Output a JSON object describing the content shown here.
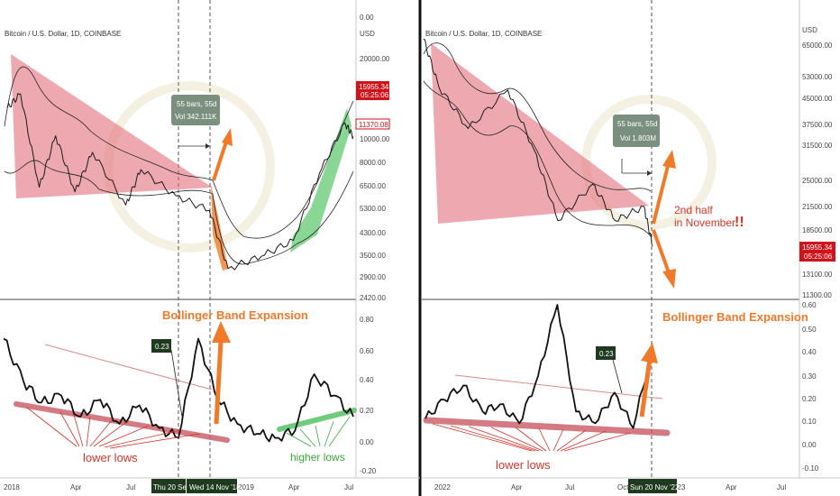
{
  "panels": [
    {
      "id": "left",
      "source": "Bitcoin / U.S. Dollar, 1D, COINBASE",
      "price_axis": {
        "ticks": [
          "0.00",
          "USD",
          "20000.00",
          "13000.00",
          "10000.00",
          "8000.00",
          "6500.00",
          "5300.00",
          "4300.00",
          "3500.00",
          "2900.00",
          "2420.00"
        ],
        "current_price_badge": {
          "price": "15955.34",
          "countdown": "05:25:06"
        },
        "marker_badge": "11370.08"
      },
      "indicator_axis": {
        "ticks": [
          "0.80",
          "0.60",
          "0.40",
          "0.20",
          "0.00",
          "-0.20"
        ]
      },
      "time_axis": {
        "ticks": [
          "2018",
          "Apr",
          "Jul",
          "2019",
          "Apr",
          "Jul"
        ],
        "highlight_labels": [
          "Thu 20 Sep '18",
          "Wed 14 Nov '18"
        ]
      },
      "measure_box": {
        "line1": "55 bars, 55d",
        "line2": "Vol 342.111K"
      },
      "indicator_value": "0.23",
      "annotations": {
        "bbe_title": "Bollinger Band Expansion",
        "lower_lows": "lower lows",
        "higher_lows": "higher lows"
      }
    },
    {
      "id": "right",
      "source": "Bitcoin / U.S. Dollar, 1D, COINBASE",
      "price_axis": {
        "ticks": [
          "USD",
          "65000.00",
          "53000.00",
          "45000.00",
          "37500.00",
          "31500.00",
          "25000.00",
          "21500.00",
          "18500.00",
          "15955.34",
          "13100.00",
          "11300.00"
        ],
        "current_price_badge": {
          "price": "15955.34",
          "countdown": "05:25:06"
        }
      },
      "indicator_axis": {
        "ticks": [
          "0.60",
          "0.50",
          "0.40",
          "0.30",
          "0.20",
          "0.10",
          "0.00",
          "-0.10"
        ]
      },
      "time_axis": {
        "ticks": [
          "2022",
          "Apr",
          "Jul",
          "Oct",
          "'23",
          "Apr",
          "Jul"
        ],
        "highlight_labels": [
          "Sun 20 Nov '22"
        ]
      },
      "measure_box": {
        "line1": "55 bars, 55d",
        "line2": "Vol 1.803M"
      },
      "indicator_value": "0.23",
      "annotations": {
        "bbe_title": "Bollinger Band Expansion",
        "second_half": "2nd half",
        "in_november": "in November",
        "exclamation": "!!",
        "lower_lows": "lower lows"
      }
    }
  ],
  "chart_data": [
    {
      "type": "line",
      "title": "",
      "panel": "left-price",
      "y_scale": "log",
      "ylim": [
        2420,
        30000
      ],
      "x": [
        "2017-12-15",
        "2018-01-06",
        "2018-02-06",
        "2018-03-05",
        "2018-04-06",
        "2018-05-05",
        "2018-06-29",
        "2018-07-24",
        "2018-09-20",
        "2018-11-14",
        "2018-12-15",
        "2019-02-08",
        "2019-04-02",
        "2019-05-15",
        "2019-06-26",
        "2019-07-10"
      ],
      "series": [
        {
          "values": [
            15000,
            17200,
            7000,
            11500,
            6700,
            9800,
            5900,
            8300,
            6450,
            5600,
            3200,
            3600,
            4200,
            8000,
            13000,
            11400
          ]
        }
      ]
    },
    {
      "type": "line",
      "title": "",
      "panel": "left-indicator",
      "ylim": [
        -0.2,
        0.9
      ],
      "x": [
        "2018-01",
        "2018-02",
        "2018-03",
        "2018-04",
        "2018-05",
        "2018-06",
        "2018-07",
        "2018-08",
        "2018-09",
        "2018-10",
        "2018-11",
        "2018-12",
        "2019-01",
        "2019-02",
        "2019-03",
        "2019-04",
        "2019-05",
        "2019-06",
        "2019-07"
      ],
      "series": [
        {
          "values": [
            0.75,
            0.45,
            0.3,
            0.35,
            0.2,
            0.32,
            0.15,
            0.28,
            0.12,
            0.05,
            0.75,
            0.32,
            0.15,
            0.08,
            0.05,
            0.1,
            0.5,
            0.35,
            0.2
          ]
        }
      ]
    },
    {
      "type": "line",
      "title": "",
      "panel": "right-price",
      "y_scale": "log",
      "ylim": [
        11300,
        70000
      ],
      "x": [
        "2021-11-10",
        "2021-12-05",
        "2022-01-22",
        "2022-03-28",
        "2022-05-10",
        "2022-06-18",
        "2022-08-14",
        "2022-09-20",
        "2022-11-06",
        "2022-11-20"
      ],
      "series": [
        {
          "values": [
            67000,
            48000,
            36000,
            47000,
            31000,
            19000,
            24500,
            19000,
            21000,
            15955
          ]
        }
      ]
    },
    {
      "type": "line",
      "title": "",
      "panel": "right-indicator",
      "ylim": [
        -0.1,
        0.6
      ],
      "x": [
        "2021-11",
        "2021-12",
        "2022-01",
        "2022-02",
        "2022-03",
        "2022-04",
        "2022-05",
        "2022-06",
        "2022-07",
        "2022-08",
        "2022-09",
        "2022-10",
        "2022-11"
      ],
      "series": [
        {
          "values": [
            0.12,
            0.2,
            0.26,
            0.15,
            0.18,
            0.1,
            0.3,
            0.6,
            0.15,
            0.1,
            0.23,
            0.08,
            0.42
          ]
        }
      ]
    }
  ],
  "colors": {
    "triangle_fill": "#e06070",
    "channel_green": "#4cc05a",
    "orange": "#f07a2a",
    "red_badge": "#d0121b",
    "label_dark": "#3d5c3f",
    "trend_pink": "#c95a64",
    "annot_red": "#d3342a",
    "annot_green": "#3aa83a"
  }
}
